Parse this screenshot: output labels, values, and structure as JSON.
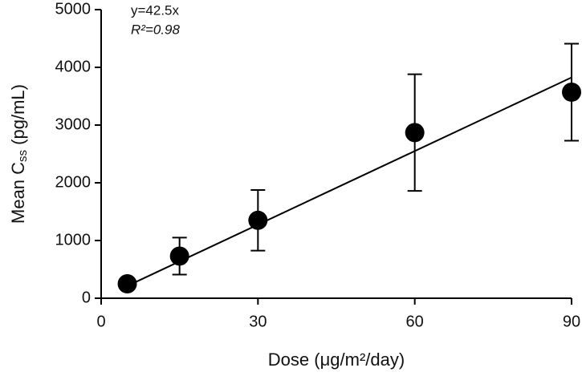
{
  "chart_data": {
    "type": "scatter",
    "x_label": "Dose (μg/m²/day)",
    "y_label": {
      "text": "Mean C",
      "subscript": "ss",
      "suffix": " (pg/mL)"
    },
    "annotations": [
      "y=42.5x",
      "R²=0.98"
    ],
    "series": [
      {
        "color": "#000000",
        "x": [
          5,
          15,
          30,
          60,
          90
        ],
        "values": [
          250,
          730,
          1350,
          2870,
          3570
        ],
        "errors": [
          null,
          320,
          525,
          1010,
          840
        ]
      }
    ],
    "fit": {
      "x": [
        5,
        90
      ],
      "y": [
        212.5,
        3825
      ]
    },
    "xlim": [
      0,
      90
    ],
    "xticks": [
      0,
      30,
      60,
      90
    ],
    "ylim": [
      0,
      5000
    ],
    "yticks": [
      0,
      1000,
      2000,
      3000,
      4000,
      5000
    ],
    "grid": false
  }
}
